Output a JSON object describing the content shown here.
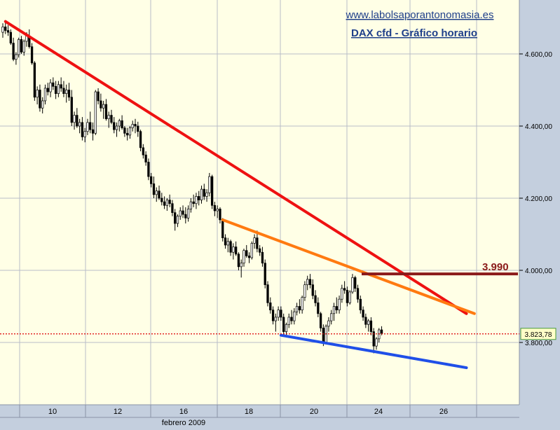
{
  "header": {
    "site": "www.labolsaporantonomasia.es",
    "title": "DAX cfd - Gráfico horario"
  },
  "colors": {
    "background": "#ffffe6",
    "grid": "#b8bcc8",
    "axis_panel": "#c4cfde",
    "candle": "#000000",
    "title": "#1f3f8a",
    "site_link": "#1f3f8a",
    "red_trend": "#ee1111",
    "orange_trend": "#ff7a10",
    "blue_trend": "#1f4fe8",
    "resistance": "#8b1a1a",
    "current_price_line": "#dd0000"
  },
  "chart_data": {
    "type": "candlestick",
    "instrument": "DAX cfd",
    "timeframe": "hourly",
    "ylim": [
      3600,
      4700
    ],
    "y_ticks": [
      3800,
      4000,
      4200,
      4400,
      4600
    ],
    "y_tick_labels": [
      "3.800,00",
      "4.000,00",
      "4.200,00",
      "4.400,00",
      "4.600,00"
    ],
    "x_tick_labels": [
      "10",
      "12",
      "16",
      "18",
      "20",
      "24",
      "26"
    ],
    "x_sublabel": "febrero 2009",
    "grid": true,
    "current_price": 3823.78,
    "current_price_label": "3.823,78",
    "resistance_level": 3990,
    "resistance_label": "3.990",
    "candles_ohlc": [
      [
        4660,
        4685,
        4645,
        4675
      ],
      [
        4675,
        4690,
        4655,
        4665
      ],
      [
        4665,
        4680,
        4650,
        4660
      ],
      [
        4660,
        4668,
        4625,
        4630
      ],
      [
        4630,
        4645,
        4580,
        4585
      ],
      [
        4585,
        4605,
        4570,
        4598
      ],
      [
        4598,
        4645,
        4590,
        4640
      ],
      [
        4640,
        4650,
        4600,
        4605
      ],
      [
        4605,
        4640,
        4595,
        4635
      ],
      [
        4635,
        4660,
        4620,
        4650
      ],
      [
        4650,
        4668,
        4615,
        4620
      ],
      [
        4620,
        4630,
        4570,
        4575
      ],
      [
        4575,
        4580,
        4470,
        4480
      ],
      [
        4480,
        4510,
        4460,
        4500
      ],
      [
        4500,
        4515,
        4440,
        4450
      ],
      [
        4450,
        4480,
        4435,
        4470
      ],
      [
        4470,
        4515,
        4460,
        4505
      ],
      [
        4505,
        4520,
        4485,
        4495
      ],
      [
        4495,
        4530,
        4480,
        4520
      ],
      [
        4520,
        4535,
        4500,
        4510
      ],
      [
        4510,
        4525,
        4475,
        4490
      ],
      [
        4490,
        4525,
        4480,
        4515
      ],
      [
        4515,
        4535,
        4495,
        4505
      ],
      [
        4505,
        4525,
        4480,
        4490
      ],
      [
        4490,
        4515,
        4465,
        4500
      ],
      [
        4500,
        4520,
        4470,
        4480
      ],
      [
        4480,
        4500,
        4400,
        4410
      ],
      [
        4410,
        4440,
        4390,
        4430
      ],
      [
        4430,
        4450,
        4395,
        4400
      ],
      [
        4400,
        4420,
        4380,
        4410
      ],
      [
        4410,
        4425,
        4360,
        4370
      ],
      [
        4370,
        4395,
        4355,
        4385
      ],
      [
        4385,
        4420,
        4375,
        4410
      ],
      [
        4410,
        4440,
        4380,
        4390
      ],
      [
        4390,
        4410,
        4360,
        4380
      ],
      [
        4380,
        4500,
        4375,
        4495
      ],
      [
        4495,
        4505,
        4460,
        4470
      ],
      [
        4470,
        4490,
        4440,
        4450
      ],
      [
        4450,
        4470,
        4420,
        4460
      ],
      [
        4460,
        4475,
        4415,
        4420
      ],
      [
        4420,
        4440,
        4395,
        4430
      ],
      [
        4430,
        4445,
        4405,
        4410
      ],
      [
        4410,
        4425,
        4380,
        4390
      ],
      [
        4390,
        4410,
        4370,
        4400
      ],
      [
        4400,
        4420,
        4385,
        4415
      ],
      [
        4415,
        4430,
        4390,
        4395
      ],
      [
        4395,
        4400,
        4370,
        4380
      ],
      [
        4380,
        4395,
        4360,
        4375
      ],
      [
        4375,
        4400,
        4365,
        4395
      ],
      [
        4395,
        4415,
        4385,
        4405
      ],
      [
        4405,
        4420,
        4380,
        4400
      ],
      [
        4400,
        4412,
        4370,
        4385
      ],
      [
        4385,
        4390,
        4330,
        4340
      ],
      [
        4340,
        4350,
        4310,
        4320
      ],
      [
        4320,
        4330,
        4290,
        4300
      ],
      [
        4300,
        4310,
        4250,
        4260
      ],
      [
        4260,
        4270,
        4230,
        4240
      ],
      [
        4240,
        4260,
        4200,
        4210
      ],
      [
        4210,
        4230,
        4190,
        4220
      ],
      [
        4220,
        4235,
        4195,
        4200
      ],
      [
        4200,
        4215,
        4180,
        4190
      ],
      [
        4190,
        4205,
        4170,
        4180
      ],
      [
        4180,
        4200,
        4165,
        4195
      ],
      [
        4195,
        4210,
        4175,
        4185
      ],
      [
        4185,
        4195,
        4150,
        4160
      ],
      [
        4160,
        4170,
        4110,
        4130
      ],
      [
        4130,
        4155,
        4120,
        4150
      ],
      [
        4150,
        4175,
        4140,
        4165
      ],
      [
        4165,
        4180,
        4145,
        4155
      ],
      [
        4155,
        4175,
        4130,
        4145
      ],
      [
        4145,
        4180,
        4135,
        4170
      ],
      [
        4170,
        4200,
        4160,
        4190
      ],
      [
        4190,
        4210,
        4175,
        4185
      ],
      [
        4185,
        4215,
        4170,
        4205
      ],
      [
        4205,
        4220,
        4180,
        4195
      ],
      [
        4195,
        4235,
        4185,
        4225
      ],
      [
        4225,
        4240,
        4195,
        4205
      ],
      [
        4205,
        4225,
        4190,
        4215
      ],
      [
        4215,
        4270,
        4205,
        4260
      ],
      [
        4260,
        4265,
        4170,
        4180
      ],
      [
        4180,
        4190,
        4150,
        4165
      ],
      [
        4165,
        4180,
        4145,
        4170
      ],
      [
        4170,
        4175,
        4130,
        4140
      ],
      [
        4140,
        4145,
        4080,
        4090
      ],
      [
        4090,
        4100,
        4060,
        4070
      ],
      [
        4070,
        4090,
        4050,
        4080
      ],
      [
        4080,
        4085,
        4040,
        4050
      ],
      [
        4050,
        4075,
        4030,
        4065
      ],
      [
        4065,
        4080,
        4040,
        4045
      ],
      [
        4045,
        4050,
        4000,
        4010
      ],
      [
        4010,
        4030,
        3980,
        4020
      ],
      [
        4020,
        4060,
        4010,
        4055
      ],
      [
        4055,
        4070,
        4035,
        4040
      ],
      [
        4040,
        4050,
        4020,
        4035
      ],
      [
        4035,
        4080,
        4030,
        4075
      ],
      [
        4075,
        4100,
        4060,
        4090
      ],
      [
        4090,
        4110,
        4050,
        4060
      ],
      [
        4060,
        4070,
        4040,
        4050
      ],
      [
        4050,
        4065,
        4010,
        4020
      ],
      [
        4020,
        4030,
        3950,
        3960
      ],
      [
        3960,
        3970,
        3900,
        3910
      ],
      [
        3910,
        3925,
        3880,
        3890
      ],
      [
        3890,
        3900,
        3850,
        3860
      ],
      [
        3860,
        3880,
        3830,
        3870
      ],
      [
        3870,
        3900,
        3860,
        3890
      ],
      [
        3890,
        3900,
        3860,
        3870
      ],
      [
        3870,
        3880,
        3820,
        3830
      ],
      [
        3830,
        3855,
        3815,
        3850
      ],
      [
        3850,
        3880,
        3840,
        3870
      ],
      [
        3870,
        3890,
        3850,
        3860
      ],
      [
        3860,
        3895,
        3850,
        3885
      ],
      [
        3885,
        3910,
        3875,
        3900
      ],
      [
        3900,
        3920,
        3880,
        3890
      ],
      [
        3890,
        3930,
        3880,
        3925
      ],
      [
        3925,
        3970,
        3915,
        3960
      ],
      [
        3960,
        3985,
        3945,
        3975
      ],
      [
        3975,
        3990,
        3950,
        3960
      ],
      [
        3960,
        3975,
        3920,
        3930
      ],
      [
        3930,
        3945,
        3900,
        3910
      ],
      [
        3910,
        3925,
        3870,
        3880
      ],
      [
        3880,
        3885,
        3830,
        3840
      ],
      [
        3840,
        3850,
        3790,
        3800
      ],
      [
        3800,
        3850,
        3795,
        3845
      ],
      [
        3845,
        3870,
        3830,
        3860
      ],
      [
        3860,
        3890,
        3850,
        3880
      ],
      [
        3880,
        3910,
        3860,
        3900
      ],
      [
        3900,
        3925,
        3880,
        3890
      ],
      [
        3890,
        3930,
        3880,
        3920
      ],
      [
        3920,
        3960,
        3910,
        3950
      ],
      [
        3950,
        3970,
        3935,
        3945
      ],
      [
        3945,
        3955,
        3900,
        3910
      ],
      [
        3910,
        3945,
        3905,
        3940
      ],
      [
        3940,
        3990,
        3935,
        3980
      ],
      [
        3980,
        3985,
        3940,
        3950
      ],
      [
        3950,
        3960,
        3910,
        3920
      ],
      [
        3920,
        3930,
        3880,
        3890
      ],
      [
        3890,
        3900,
        3860,
        3870
      ],
      [
        3870,
        3880,
        3840,
        3850
      ],
      [
        3850,
        3865,
        3830,
        3860
      ],
      [
        3860,
        3870,
        3820,
        3830
      ],
      [
        3830,
        3840,
        3770,
        3790
      ],
      [
        3790,
        3815,
        3780,
        3810
      ],
      [
        3810,
        3840,
        3800,
        3835
      ],
      [
        3835,
        3845,
        3820,
        3825
      ]
    ],
    "trendlines": [
      {
        "name": "red",
        "from": {
          "bar": 1,
          "price": 4690
        },
        "to": {
          "bar": 175,
          "price": 3880
        }
      },
      {
        "name": "orange",
        "from": {
          "bar": 83,
          "price": 4140
        },
        "to": {
          "bar": 178,
          "price": 3880
        }
      },
      {
        "name": "blue",
        "from": {
          "bar": 105,
          "price": 3820
        },
        "to": {
          "bar": 175,
          "price": 3730
        }
      }
    ]
  }
}
